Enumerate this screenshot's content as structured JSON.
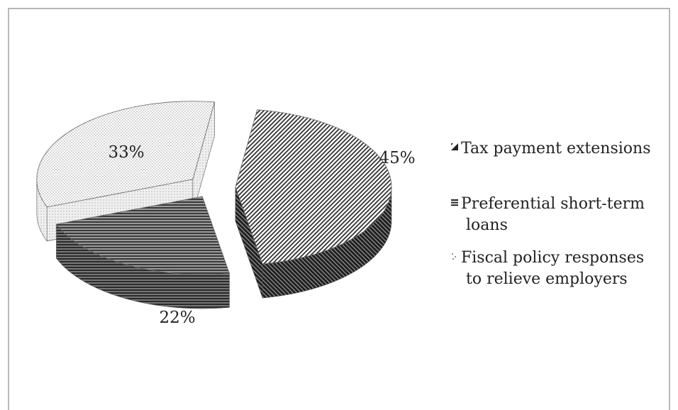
{
  "chart_data": {
    "type": "pie",
    "style": "3d-exploded",
    "title": "",
    "categories": [
      "Tax  payment extensions",
      "Preferential short-term loans",
      "Fiscal policy responses to relieve employers"
    ],
    "values": [
      45,
      22,
      33
    ],
    "data_labels": [
      "45%",
      "22%",
      "33%"
    ],
    "legend_lines": [
      [
        "Tax  payment extensions"
      ],
      [
        "Preferential short-term",
        "loans"
      ],
      [
        "Fiscal policy responses",
        "to relieve employers"
      ]
    ],
    "legend_position": "right",
    "grid": false,
    "colors": [
      "#3c3c3c",
      "#5a5a5a",
      "#d9d9d9"
    ],
    "patterns": [
      "diagonal-stripes",
      "horizontal-stripes",
      "dots"
    ]
  }
}
